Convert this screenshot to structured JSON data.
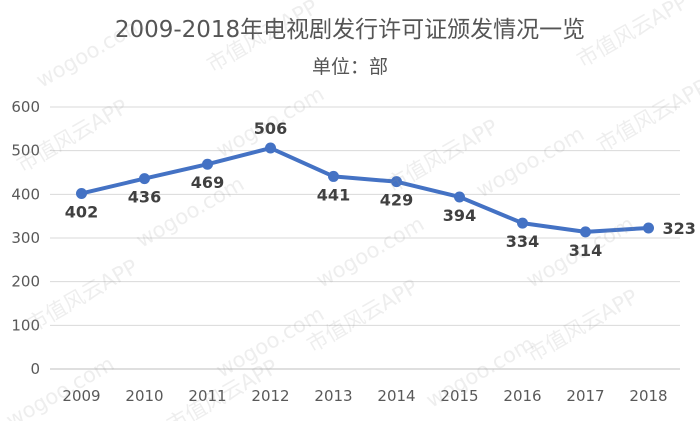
{
  "chart_data": {
    "type": "line",
    "title": "2009-2018年电视剧发行许可证颁发情况一览",
    "subtitle": "单位：部",
    "categories": [
      "2009",
      "2010",
      "2011",
      "2012",
      "2013",
      "2014",
      "2015",
      "2016",
      "2017",
      "2018"
    ],
    "series": [
      {
        "values": [
          402,
          436,
          469,
          506,
          441,
          429,
          394,
          334,
          314,
          323
        ]
      }
    ],
    "ylim": [
      0,
      600
    ],
    "yticks": [
      0,
      100,
      200,
      300,
      400,
      500,
      600
    ],
    "grid": true,
    "legend": "none",
    "line_color": "#4472C4"
  },
  "watermark": {
    "cn": "市值风云APP",
    "en": "wogoo.com"
  }
}
